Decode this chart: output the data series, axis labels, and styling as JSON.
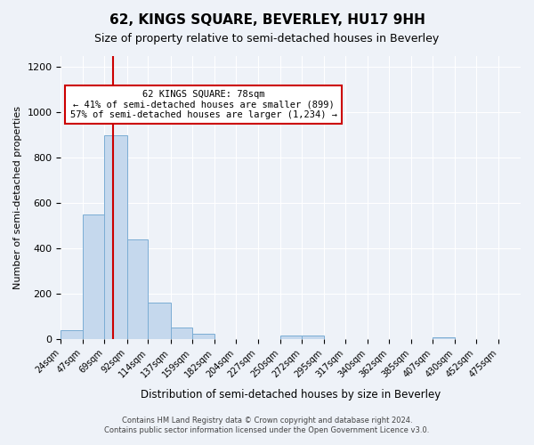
{
  "title": "62, KINGS SQUARE, BEVERLEY, HU17 9HH",
  "subtitle": "Size of property relative to semi-detached houses in Beverley",
  "xlabel": "Distribution of semi-detached houses by size in Beverley",
  "ylabel": "Number of semi-detached properties",
  "bin_labels": [
    "24sqm",
    "47sqm",
    "69sqm",
    "92sqm",
    "114sqm",
    "137sqm",
    "159sqm",
    "182sqm",
    "204sqm",
    "227sqm",
    "250sqm",
    "272sqm",
    "295sqm",
    "317sqm",
    "340sqm",
    "362sqm",
    "385sqm",
    "407sqm",
    "430sqm",
    "452sqm",
    "475sqm"
  ],
  "bin_starts": [
    24,
    47,
    69,
    92,
    114,
    137,
    159,
    182,
    204,
    227,
    250,
    272,
    295,
    317,
    340,
    362,
    385,
    407,
    430,
    452,
    475,
    498
  ],
  "bar_values": [
    40,
    550,
    900,
    440,
    163,
    50,
    25,
    0,
    0,
    0,
    15,
    15,
    0,
    0,
    0,
    0,
    0,
    10,
    0,
    0,
    0
  ],
  "bar_color": "#c5d8ed",
  "bar_edge_color": "#7badd4",
  "vline_x": 78,
  "ylim": [
    0,
    1250
  ],
  "yticks": [
    0,
    200,
    400,
    600,
    800,
    1000,
    1200
  ],
  "annotation_title": "62 KINGS SQUARE: 78sqm",
  "annotation_line1": "← 41% of semi-detached houses are smaller (899)",
  "annotation_line2": "57% of semi-detached houses are larger (1,234) →",
  "annotation_box_color": "#ffffff",
  "annotation_box_edge": "#cc0000",
  "red_line_color": "#cc0000",
  "footer_line1": "Contains HM Land Registry data © Crown copyright and database right 2024.",
  "footer_line2": "Contains public sector information licensed under the Open Government Licence v3.0.",
  "background_color": "#eef2f8",
  "grid_color": "#ffffff",
  "title_fontsize": 11,
  "subtitle_fontsize": 9,
  "xlabel_fontsize": 8.5,
  "ylabel_fontsize": 8
}
